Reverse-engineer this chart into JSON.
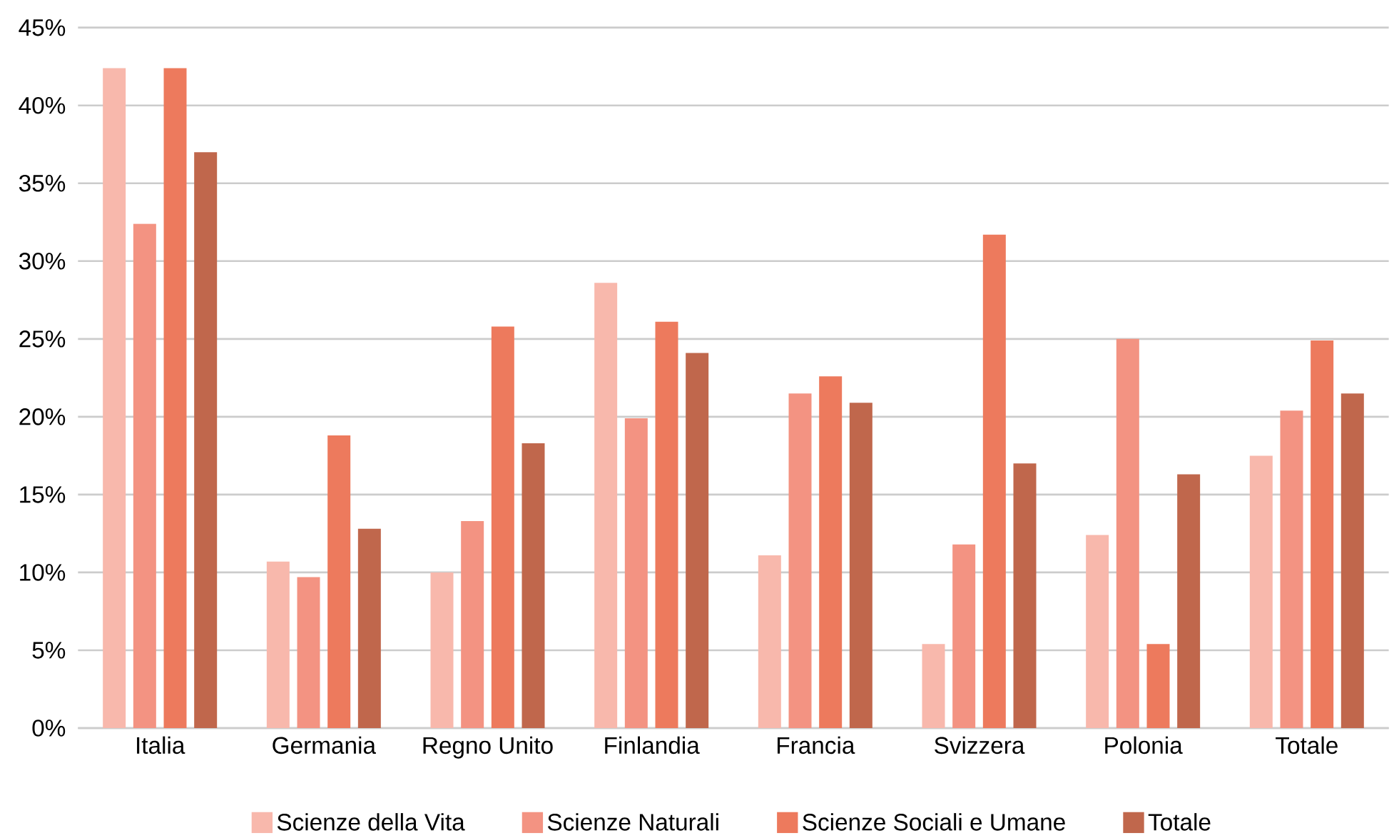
{
  "chart_data": {
    "type": "bar",
    "categories": [
      "Italia",
      "Germania",
      "Regno Unito",
      "Finlandia",
      "Francia",
      "Svizzera",
      "Polonia",
      "Totale"
    ],
    "series": [
      {
        "name": "Scienze della Vita",
        "color": "#f8b8ac",
        "values": [
          42.4,
          10.7,
          10.0,
          28.6,
          11.1,
          5.4,
          12.4,
          17.5
        ]
      },
      {
        "name": "Scienze Naturali",
        "color": "#f39382",
        "values": [
          32.4,
          9.7,
          13.3,
          19.9,
          21.5,
          11.8,
          25.0,
          20.4
        ]
      },
      {
        "name": "Scienze Sociali e Umane",
        "color": "#ed7a5d",
        "values": [
          42.4,
          18.8,
          25.8,
          26.1,
          22.6,
          31.7,
          5.4,
          24.9
        ]
      },
      {
        "name": "Totale",
        "color": "#c0674c",
        "values": [
          37.0,
          12.8,
          18.3,
          24.1,
          20.9,
          17.0,
          16.3,
          21.5
        ]
      }
    ],
    "ylim": [
      0,
      45
    ],
    "yticks": [
      {
        "value": 0,
        "label": "0%"
      },
      {
        "value": 5,
        "label": "5%"
      },
      {
        "value": 10,
        "label": "10%"
      },
      {
        "value": 15,
        "label": "15%"
      },
      {
        "value": 20,
        "label": "20%"
      },
      {
        "value": 25,
        "label": "25%"
      },
      {
        "value": 30,
        "label": "30%"
      },
      {
        "value": 35,
        "label": "35%"
      },
      {
        "value": 40,
        "label": "40%"
      },
      {
        "value": 45,
        "label": "45%"
      }
    ],
    "grid": "y",
    "legend": "bottom"
  }
}
